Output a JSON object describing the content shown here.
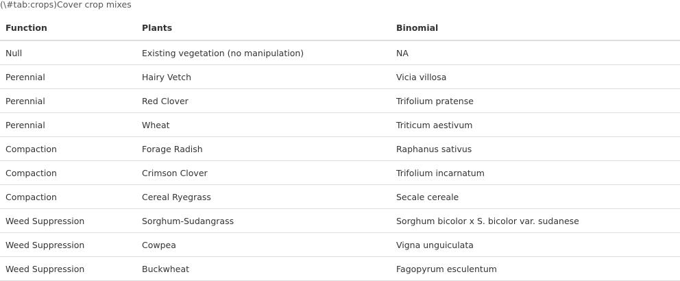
{
  "caption": "(\\#tab:crops)Cover crop mixes",
  "table": {
    "headers": [
      "Function",
      "Plants",
      "Binomial"
    ],
    "rows": [
      [
        "Null",
        "Existing vegetation (no manipulation)",
        "NA"
      ],
      [
        "Perennial",
        "Hairy Vetch",
        "Vicia villosa"
      ],
      [
        "Perennial",
        "Red Clover",
        "Trifolium pratense"
      ],
      [
        "Perennial",
        "Wheat",
        "Triticum aestivum"
      ],
      [
        "Compaction",
        "Forage Radish",
        "Raphanus sativus"
      ],
      [
        "Compaction",
        "Crimson Clover",
        "Trifolium incarnatum"
      ],
      [
        "Compaction",
        "Cereal Ryegrass",
        "Secale cereale"
      ],
      [
        "Weed Suppression",
        "Sorghum-Sudangrass",
        "Sorghum bicolor x S. bicolor var. sudanese"
      ],
      [
        "Weed Suppression",
        "Cowpea",
        "Vigna unguiculata"
      ],
      [
        "Weed Suppression",
        "Buckwheat",
        "Fagopyrum esculentum"
      ]
    ]
  }
}
